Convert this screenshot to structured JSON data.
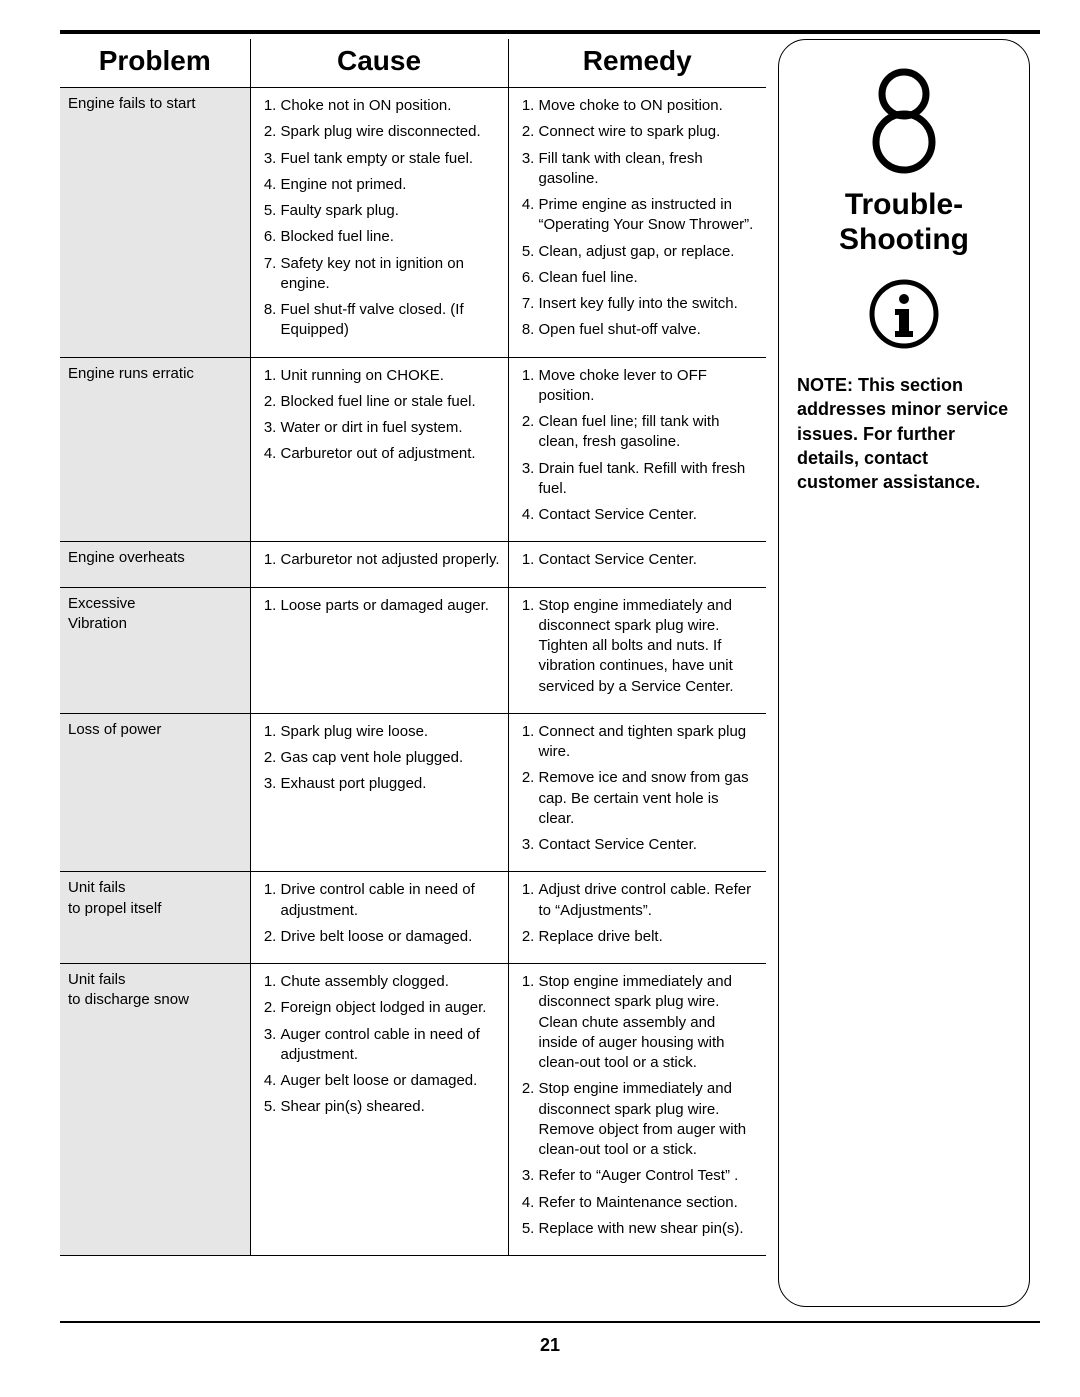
{
  "pageNumber": "21",
  "table": {
    "headers": [
      "Problem",
      "Cause",
      "Remedy"
    ],
    "rows": [
      {
        "problem": "Engine fails to start",
        "causes": [
          "Choke not in ON position.",
          "Spark plug wire disconnected.",
          "Fuel tank empty or stale fuel.",
          "Engine not primed.",
          "Faulty spark plug.",
          "Blocked fuel line.",
          "Safety key not in ignition on engine.",
          "Fuel shut-ff valve closed. (If Equipped)"
        ],
        "remedies": [
          "Move choke to ON position.",
          "Connect wire to spark plug.",
          "Fill tank with clean, fresh gasoline.",
          "Prime engine as instructed in “Operating Your Snow Thrower”.",
          "Clean, adjust gap, or replace.",
          "Clean fuel line.",
          "Insert key fully into the switch.",
          "Open fuel shut-off valve."
        ]
      },
      {
        "problem": "Engine runs erratic",
        "causes": [
          "Unit running on CHOKE.",
          "Blocked fuel line or stale fuel.",
          "Water or dirt in fuel system.",
          "Carburetor out of adjustment."
        ],
        "remedies": [
          "Move choke lever to OFF position.",
          "Clean fuel line; fill tank with clean, fresh gasoline.",
          "Drain fuel tank. Refill with fresh fuel.",
          "Contact Service Center."
        ]
      },
      {
        "problem": "Engine overheats",
        "causes": [
          "Carburetor not adjusted properly."
        ],
        "remedies": [
          "Contact Service Center."
        ]
      },
      {
        "problem": "Excessive\nVibration",
        "causes": [
          "Loose parts or damaged auger."
        ],
        "remedies": [
          "Stop engine immediately and disconnect spark plug wire. Tighten all bolts and nuts. If vibration continues, have unit serviced by a Service Center."
        ]
      },
      {
        "problem": "Loss of power",
        "causes": [
          "Spark plug wire loose.",
          "Gas cap vent hole plugged.",
          "Exhaust port plugged."
        ],
        "remedies": [
          "Connect and tighten spark plug wire.",
          "Remove ice and snow from gas cap. Be certain vent hole is clear.",
          "Contact Service Center."
        ]
      },
      {
        "problem": "Unit fails\nto propel itself",
        "causes": [
          "Drive control cable in need of adjustment.",
          "Drive belt loose or damaged."
        ],
        "remedies": [
          "Adjust drive control cable. Refer to “Adjustments”.",
          "Replace drive belt."
        ]
      },
      {
        "problem": "Unit fails\nto discharge snow",
        "causes": [
          "Chute assembly clogged.",
          "Foreign object lodged in auger.",
          "Auger control cable in need of adjustment.",
          "Auger belt loose or damaged.",
          "Shear pin(s) sheared."
        ],
        "remedies": [
          "Stop engine immediately and disconnect spark plug wire. Clean chute assembly and inside of auger housing with clean-out tool or a stick.",
          "Stop engine immediately and disconnect spark plug wire. Remove object from auger with clean-out tool or a stick.",
          "Refer to “Auger Control Test” .",
          "Refer to Maintenance section.",
          "Replace with new shear pin(s)."
        ]
      }
    ]
  },
  "sidebar": {
    "chapterNumber": "8",
    "titleLine1": "Trouble-",
    "titleLine2": "Shooting",
    "note": "NOTE: This section addresses minor service issues. For further details, contact customer assistance."
  }
}
